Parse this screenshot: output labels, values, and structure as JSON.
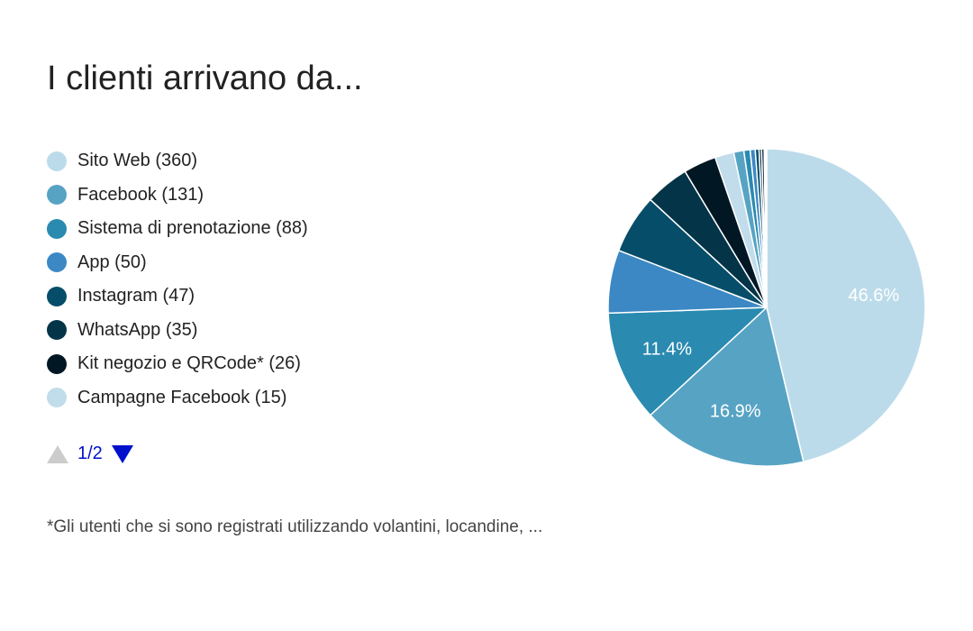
{
  "chart_data": {
    "type": "pie",
    "title": "I clienti arrivano da...",
    "slices": [
      {
        "label": "Sito Web (360)",
        "name": "Sito Web",
        "value": 360,
        "color": "#bcdbea",
        "pct_label": "46.6%"
      },
      {
        "label": "Facebook (131)",
        "name": "Facebook",
        "value": 131,
        "color": "#57a3c4",
        "pct_label": "16.9%"
      },
      {
        "label": "Sistema di prenotazione (88)",
        "name": "Sistema di prenotazione",
        "value": 88,
        "color": "#2a8ab0",
        "pct_label": "11.4%"
      },
      {
        "label": "App (50)",
        "name": "App",
        "value": 50,
        "color": "#3b88c4",
        "pct_label": ""
      },
      {
        "label": "Instagram (47)",
        "name": "Instagram",
        "value": 47,
        "color": "#064d69",
        "pct_label": ""
      },
      {
        "label": "WhatsApp (35)",
        "name": "WhatsApp",
        "value": 35,
        "color": "#033447",
        "pct_label": ""
      },
      {
        "label": "Kit negozio e QRCode* (26)",
        "name": "Kit negozio e QRCode*",
        "value": 26,
        "color": "#011724",
        "pct_label": ""
      },
      {
        "label": "Campagne Facebook (15)",
        "name": "Campagne Facebook",
        "value": 15,
        "color": "#c1dcea",
        "pct_label": ""
      }
    ],
    "hidden_slices": [
      {
        "value": 8,
        "color": "#57a3c4"
      },
      {
        "value": 5,
        "color": "#2a8ab0"
      },
      {
        "value": 4,
        "color": "#3b88c4"
      },
      {
        "value": 3,
        "color": "#064d69"
      },
      {
        "value": 2,
        "color": "#033447"
      },
      {
        "value": 2,
        "color": "#011724"
      },
      {
        "value": 1,
        "color": "#c1dcea"
      },
      {
        "value": 1,
        "color": "#57a3c4"
      }
    ],
    "legend_position": "left"
  },
  "pager": {
    "label": "1/2"
  },
  "footnote": "*Gli utenti che si sono registrati utilizzando volantini, locandine, ..."
}
